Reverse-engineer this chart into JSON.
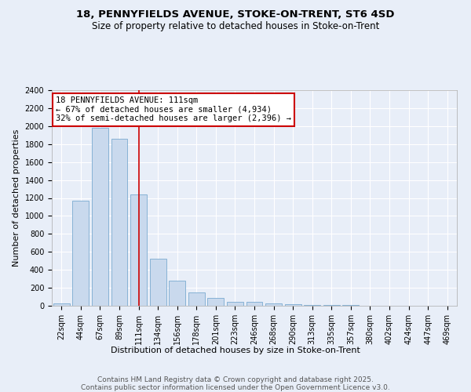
{
  "title": "18, PENNYFIELDS AVENUE, STOKE-ON-TRENT, ST6 4SD",
  "subtitle": "Size of property relative to detached houses in Stoke-on-Trent",
  "xlabel": "Distribution of detached houses by size in Stoke-on-Trent",
  "ylabel": "Number of detached properties",
  "bar_labels": [
    "22sqm",
    "44sqm",
    "67sqm",
    "89sqm",
    "111sqm",
    "134sqm",
    "156sqm",
    "178sqm",
    "201sqm",
    "223sqm",
    "246sqm",
    "268sqm",
    "290sqm",
    "313sqm",
    "335sqm",
    "357sqm",
    "380sqm",
    "402sqm",
    "424sqm",
    "447sqm",
    "469sqm"
  ],
  "bar_values": [
    25,
    1170,
    1980,
    1860,
    1240,
    520,
    275,
    150,
    90,
    45,
    45,
    22,
    15,
    10,
    5,
    5,
    3,
    2,
    2,
    2,
    2
  ],
  "bar_color": "#c9d9ed",
  "bar_edge_color": "#7aaad0",
  "vline_x": 4,
  "vline_color": "#cc0000",
  "annotation_text": "18 PENNYFIELDS AVENUE: 111sqm\n← 67% of detached houses are smaller (4,934)\n32% of semi-detached houses are larger (2,396) →",
  "annotation_box_color": "#ffffff",
  "annotation_box_edge_color": "#cc0000",
  "ylim": [
    0,
    2400
  ],
  "yticks": [
    0,
    200,
    400,
    600,
    800,
    1000,
    1200,
    1400,
    1600,
    1800,
    2000,
    2200,
    2400
  ],
  "background_color": "#e8eef8",
  "grid_color": "#ffffff",
  "footer_text": "Contains HM Land Registry data © Crown copyright and database right 2025.\nContains public sector information licensed under the Open Government Licence v3.0.",
  "title_fontsize": 9.5,
  "subtitle_fontsize": 8.5,
  "xlabel_fontsize": 8,
  "ylabel_fontsize": 8,
  "tick_fontsize": 7,
  "annotation_fontsize": 7.5,
  "footer_fontsize": 6.5
}
